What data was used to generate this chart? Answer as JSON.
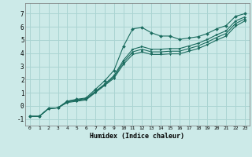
{
  "xlabel": "Humidex (Indice chaleur)",
  "bg_color": "#cceae8",
  "grid_color": "#aad4d2",
  "line_color": "#1a6b5e",
  "xlim": [
    -0.5,
    23.5
  ],
  "ylim": [
    -1.5,
    7.8
  ],
  "xticks": [
    0,
    1,
    2,
    3,
    4,
    5,
    6,
    7,
    8,
    9,
    10,
    11,
    12,
    13,
    14,
    15,
    16,
    17,
    18,
    19,
    20,
    21,
    22,
    23
  ],
  "yticks": [
    -1,
    0,
    1,
    2,
    3,
    4,
    5,
    6,
    7
  ],
  "series1_x": [
    0,
    1,
    2,
    3,
    4,
    5,
    6,
    7,
    8,
    9,
    10,
    11,
    12,
    13,
    14,
    15,
    16,
    17,
    18,
    19,
    20,
    21,
    22,
    23
  ],
  "series1_y": [
    -0.8,
    -0.8,
    -0.2,
    -0.15,
    0.35,
    0.5,
    0.6,
    1.25,
    1.9,
    2.7,
    4.5,
    5.85,
    5.95,
    5.55,
    5.3,
    5.3,
    5.05,
    5.15,
    5.25,
    5.5,
    5.85,
    6.1,
    6.8,
    7.0
  ],
  "series2_x": [
    0,
    1,
    2,
    3,
    4,
    5,
    6,
    7,
    8,
    9,
    10,
    11,
    12,
    13,
    14,
    15,
    16,
    17,
    18,
    19,
    20,
    21,
    22,
    23
  ],
  "series2_y": [
    -0.8,
    -0.8,
    -0.2,
    -0.15,
    0.35,
    0.45,
    0.55,
    1.1,
    1.65,
    2.3,
    3.45,
    4.3,
    4.5,
    4.3,
    4.3,
    4.35,
    4.35,
    4.55,
    4.75,
    5.05,
    5.4,
    5.7,
    6.45,
    6.75
  ],
  "series3_x": [
    0,
    1,
    2,
    3,
    4,
    5,
    6,
    7,
    8,
    9,
    10,
    11,
    12,
    13,
    14,
    15,
    16,
    17,
    18,
    19,
    20,
    21,
    22,
    23
  ],
  "series3_y": [
    -0.8,
    -0.8,
    -0.2,
    -0.15,
    0.3,
    0.4,
    0.5,
    1.05,
    1.6,
    2.2,
    3.3,
    4.1,
    4.3,
    4.1,
    4.1,
    4.15,
    4.15,
    4.35,
    4.55,
    4.85,
    5.2,
    5.5,
    6.25,
    6.6
  ],
  "series4_x": [
    0,
    1,
    2,
    3,
    4,
    5,
    6,
    7,
    8,
    9,
    10,
    11,
    12,
    13,
    14,
    15,
    16,
    17,
    18,
    19,
    20,
    21,
    22,
    23
  ],
  "series4_y": [
    -0.8,
    -0.8,
    -0.2,
    -0.15,
    0.25,
    0.35,
    0.45,
    1.0,
    1.55,
    2.1,
    3.15,
    3.9,
    4.1,
    3.9,
    3.9,
    3.95,
    3.95,
    4.15,
    4.35,
    4.65,
    5.0,
    5.3,
    6.05,
    6.45
  ]
}
